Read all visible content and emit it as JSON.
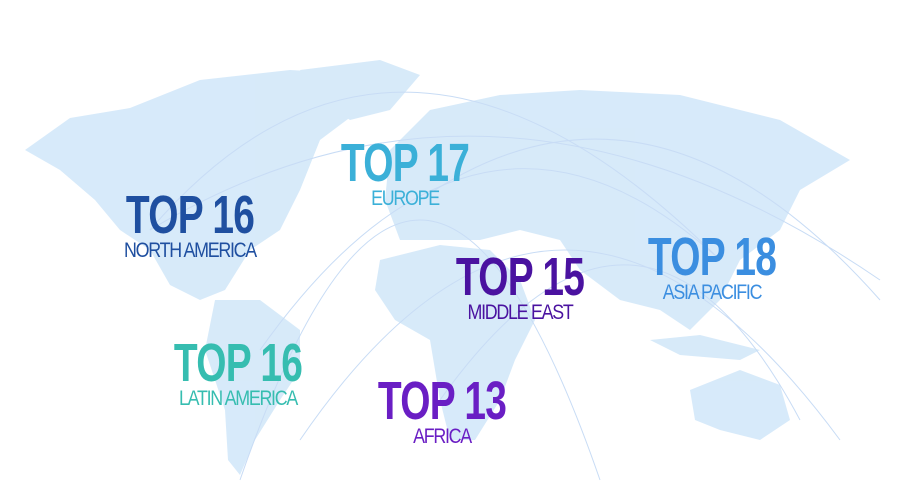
{
  "regions": [
    {
      "key": "north_america",
      "rank": "TOP 16",
      "name": "NORTH AMERICA",
      "color": "#1f4fa0"
    },
    {
      "key": "europe",
      "rank": "TOP 17",
      "name": "EUROPE",
      "color": "#3bb0d8"
    },
    {
      "key": "middle_east",
      "rank": "TOP 15",
      "name": "MIDDLE EAST",
      "color": "#4a12a0"
    },
    {
      "key": "asia_pacific",
      "rank": "TOP 18",
      "name": "ASIA PACIFIC",
      "color": "#3b8ee0"
    },
    {
      "key": "latin_america",
      "rank": "TOP 16",
      "name": "LATIN AMERICA",
      "color": "#36bdb0"
    },
    {
      "key": "africa",
      "rank": "TOP 13",
      "name": "AFRICA",
      "color": "#6a1ec4"
    }
  ],
  "map_color": "#cfe6f8"
}
